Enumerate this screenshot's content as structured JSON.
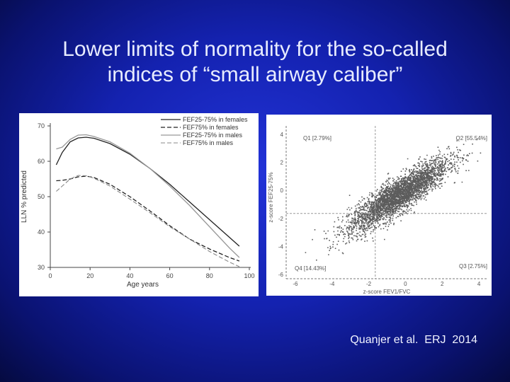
{
  "slide": {
    "title_line1": "Lower limits of normality for the so-called",
    "title_line2": "indices of “small airway caliber”",
    "citation": "Quanjer et al.  ERJ  2014",
    "background_color": "#1422b0",
    "title_color": "#e8ecff"
  },
  "chart_data": [
    {
      "type": "line",
      "xlabel": "Age years",
      "ylabel": "LLN % predicted",
      "xlim": [
        0,
        100
      ],
      "ylim": [
        30,
        70
      ],
      "xticks": [
        "0",
        "20",
        "40",
        "60",
        "80",
        "100"
      ],
      "yticks": [
        "30",
        "40",
        "50",
        "60",
        "70"
      ],
      "legend_position": "top-right",
      "grid": false,
      "series": [
        {
          "name": "FEF25-75% in females",
          "style": "solid",
          "x": [
            3,
            6,
            10,
            14,
            18,
            22,
            30,
            40,
            50,
            60,
            70,
            80,
            90,
            95
          ],
          "y": [
            59,
            62.5,
            65.5,
            66.6,
            66.8,
            66.5,
            65,
            62,
            58,
            53.5,
            48.5,
            43.5,
            38.5,
            36
          ]
        },
        {
          "name": "FEF75% in females",
          "style": "dashed",
          "x": [
            3,
            6,
            10,
            14,
            18,
            22,
            30,
            40,
            50,
            60,
            70,
            80,
            90,
            95
          ],
          "y": [
            54.5,
            54.6,
            55,
            55.6,
            55.8,
            55.4,
            53.5,
            50,
            46,
            41.8,
            38,
            35.2,
            32.8,
            31.8
          ]
        },
        {
          "name": "FEF25-75% in males",
          "style": "solid",
          "x": [
            3,
            6,
            10,
            14,
            18,
            22,
            30,
            40,
            50,
            60,
            70,
            80,
            90,
            95
          ],
          "y": [
            63.5,
            64,
            66.2,
            67.4,
            67.5,
            67,
            65.5,
            62.3,
            58,
            53,
            47.5,
            41.5,
            35.5,
            32.8
          ]
        },
        {
          "name": "FEF75% in males",
          "style": "dashed-light",
          "x": [
            3,
            6,
            10,
            14,
            18,
            22,
            30,
            40,
            50,
            60,
            70,
            80,
            90,
            95
          ],
          "y": [
            51.5,
            53,
            55,
            56,
            55.9,
            55.2,
            53,
            49.3,
            45.5,
            41.5,
            38,
            34.5,
            31.5,
            30.2
          ]
        }
      ]
    },
    {
      "type": "scatter",
      "xlabel": "z-score FEV1/FVC",
      "ylabel": "z-score FEF25-75%",
      "xlim": [
        -6.5,
        4.5
      ],
      "ylim": [
        -6.3,
        4.3
      ],
      "xticks": [
        "-6",
        "-4",
        "-2",
        "0",
        "2",
        "4"
      ],
      "yticks": [
        "-6",
        "-4",
        "-2",
        "0",
        "2",
        "4"
      ],
      "reference_lines": {
        "x": -1.645,
        "y": -1.645
      },
      "quadrant_labels": {
        "q1": "Q1 [2.79%]",
        "q2": "Q2 [55.54%]",
        "q3": "Q3 [2.75%]",
        "q4": "Q4 [14.43%]"
      },
      "point_cloud": {
        "trend_slope": 0.82,
        "trend_intercept": 0.0,
        "center_x": -0.4,
        "spread_x": 1.35,
        "residual_spread": 0.62,
        "count": 3500
      },
      "point_color": "#333333"
    }
  ]
}
